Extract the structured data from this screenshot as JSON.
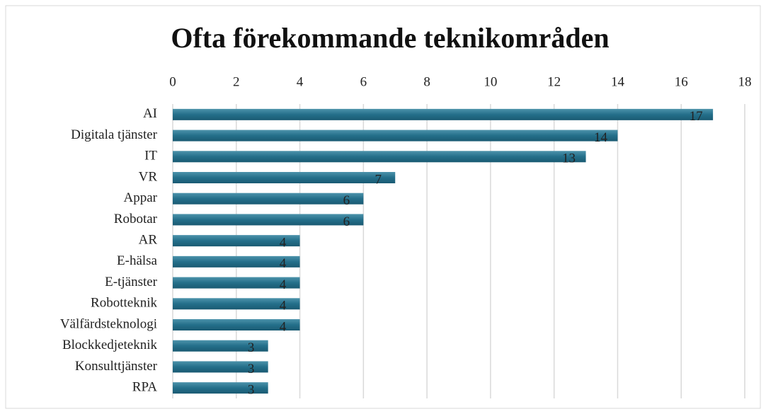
{
  "chart_data": {
    "type": "bar",
    "orientation": "horizontal",
    "title": "Ofta förekommande teknikområden",
    "categories": [
      "AI",
      "Digitala tjänster",
      "IT",
      "VR",
      "Appar",
      "Robotar",
      "AR",
      "E-hälsa",
      "E-tjänster",
      "Robotteknik",
      "Välfärdsteknologi",
      "Blockkedjeteknik",
      "Konsulttjänster",
      "RPA"
    ],
    "values": [
      17,
      14,
      13,
      7,
      6,
      6,
      4,
      4,
      4,
      4,
      4,
      3,
      3,
      3
    ],
    "color": "#246f8a",
    "xlim": [
      0,
      18
    ],
    "xticks": [
      0,
      2,
      4,
      6,
      8,
      10,
      12,
      14,
      16,
      18
    ],
    "grid": true
  }
}
